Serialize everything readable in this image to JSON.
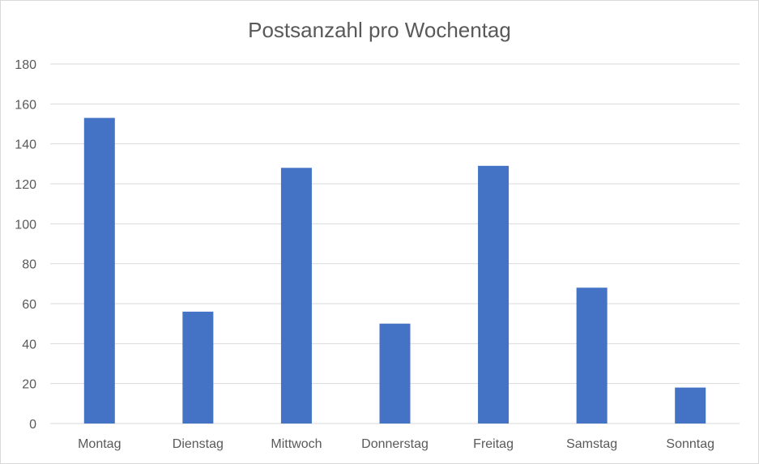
{
  "chart_data": {
    "type": "bar",
    "title": "Postsanzahl pro Wochentag",
    "categories": [
      "Montag",
      "Dienstag",
      "Mittwoch",
      "Donnerstag",
      "Freitag",
      "Samstag",
      "Sonntag"
    ],
    "values": [
      153,
      56,
      128,
      50,
      129,
      68,
      18
    ],
    "xlabel": "",
    "ylabel": "",
    "ylim": [
      0,
      180
    ],
    "yticks": [
      0,
      20,
      40,
      60,
      80,
      100,
      120,
      140,
      160,
      180
    ],
    "grid": true,
    "legend": "none",
    "bar_color": "#4472C4",
    "grid_color": "#d9d9d9"
  }
}
